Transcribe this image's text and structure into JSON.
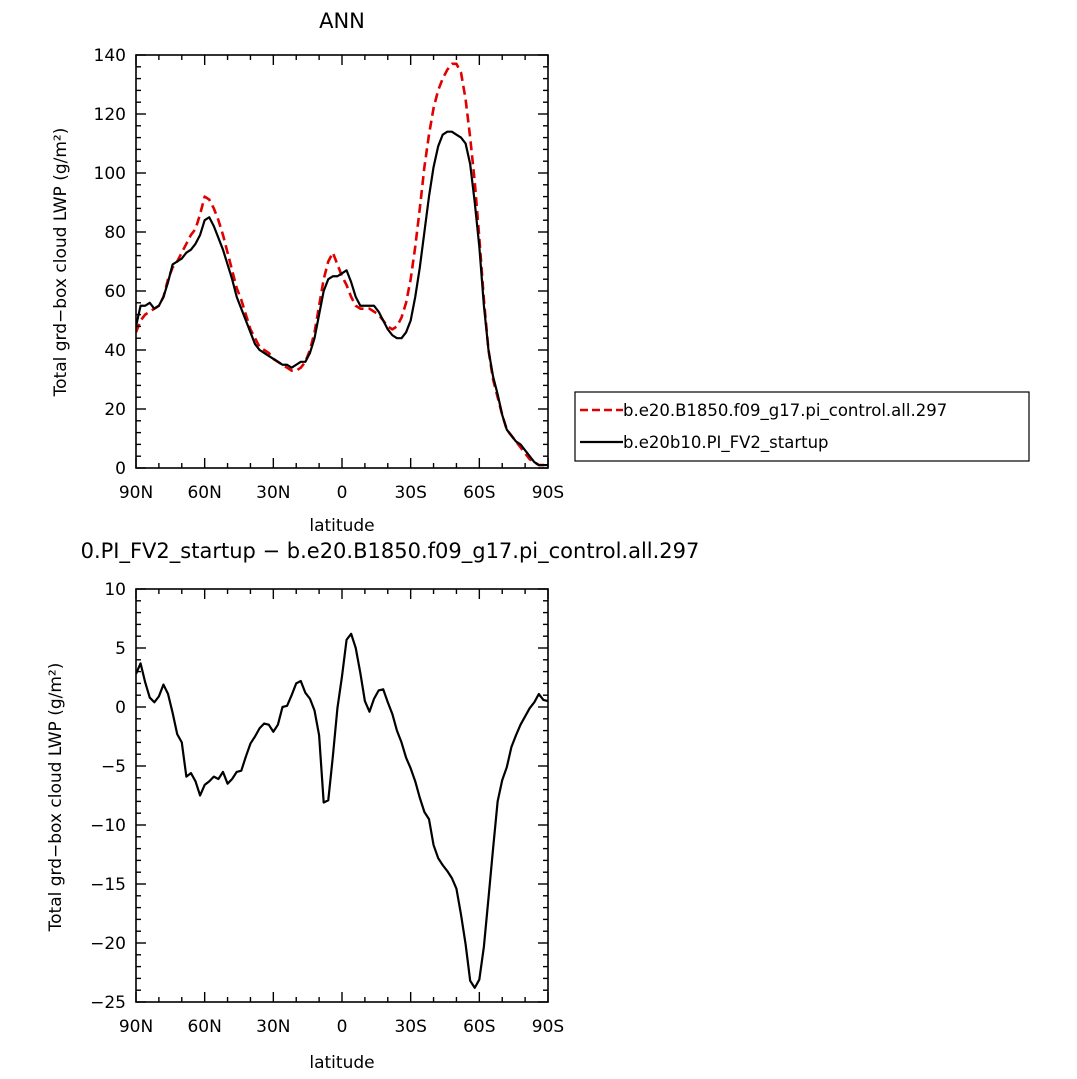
{
  "chart_data": [
    {
      "type": "line",
      "title": "ANN",
      "xlabel": "latitude",
      "ylabel": "Total grd−box cloud LWP (g/m²)",
      "xlim": [
        90,
        -90
      ],
      "ylim": [
        0,
        140
      ],
      "x_tick_values": [
        90,
        60,
        30,
        0,
        -30,
        -60,
        -90
      ],
      "x_tick_labels": [
        "90N",
        "60N",
        "30N",
        "0",
        "30S",
        "60S",
        "90S"
      ],
      "y_tick_values": [
        0,
        20,
        40,
        60,
        80,
        100,
        120,
        140
      ],
      "y_tick_labels": [
        "0",
        "20",
        "40",
        "60",
        "80",
        "100",
        "120",
        "140"
      ],
      "legend_position": "right",
      "series": [
        {
          "name": "b.e20.B1850.f09_g17.pi_control.all.297",
          "color": "#e00000",
          "dash": "dashed",
          "x": [
            90,
            88,
            86,
            84,
            82,
            80,
            78,
            76,
            74,
            72,
            70,
            68,
            66,
            64,
            62,
            60,
            58,
            56,
            54,
            52,
            50,
            48,
            46,
            44,
            42,
            40,
            38,
            36,
            34,
            32,
            30,
            28,
            26,
            24,
            22,
            20,
            18,
            16,
            14,
            12,
            10,
            8,
            6,
            4,
            2,
            0,
            -2,
            -4,
            -6,
            -8,
            -10,
            -12,
            -14,
            -16,
            -18,
            -20,
            -22,
            -24,
            -26,
            -28,
            -30,
            -32,
            -34,
            -36,
            -38,
            -40,
            -42,
            -44,
            -46,
            -48,
            -50,
            -52,
            -54,
            -56,
            -58,
            -60,
            -62,
            -64,
            -66,
            -68,
            -70,
            -72,
            -74,
            -76,
            -78,
            -80,
            -82,
            -84,
            -86,
            -88,
            -90
          ],
          "values": [
            46,
            50,
            52,
            53,
            54,
            55,
            58,
            64,
            68,
            70,
            73,
            76,
            79,
            81,
            86,
            92,
            91,
            88,
            84,
            79,
            73,
            67,
            61,
            57,
            52,
            47,
            44,
            41,
            40,
            39,
            37,
            36,
            35,
            34,
            33,
            33,
            34,
            36,
            40,
            46,
            55,
            64,
            70,
            73,
            69,
            65,
            62,
            58,
            55,
            54,
            54,
            54,
            53,
            52,
            50,
            48,
            47,
            48,
            51,
            56,
            64,
            75,
            88,
            102,
            113,
            122,
            128,
            132,
            135,
            137,
            137,
            134,
            125,
            112,
            97,
            78,
            57,
            40,
            30,
            24,
            18,
            13,
            11,
            9,
            7,
            5,
            3,
            2,
            1,
            1,
            1
          ]
        },
        {
          "name": "b.e20b10.PI_FV2_startup",
          "color": "#000000",
          "dash": "solid",
          "x": [
            90,
            88,
            86,
            84,
            82,
            80,
            78,
            76,
            74,
            72,
            70,
            68,
            66,
            64,
            62,
            60,
            58,
            56,
            54,
            52,
            50,
            48,
            46,
            44,
            42,
            40,
            38,
            36,
            34,
            32,
            30,
            28,
            26,
            24,
            22,
            20,
            18,
            16,
            14,
            12,
            10,
            8,
            6,
            4,
            2,
            0,
            -2,
            -4,
            -6,
            -8,
            -10,
            -12,
            -14,
            -16,
            -18,
            -20,
            -22,
            -24,
            -26,
            -28,
            -30,
            -32,
            -34,
            -36,
            -38,
            -40,
            -42,
            -44,
            -46,
            -48,
            -50,
            -52,
            -54,
            -56,
            -58,
            -60,
            -62,
            -64,
            -66,
            -68,
            -70,
            -72,
            -74,
            -76,
            -78,
            -80,
            -82,
            -84,
            -86,
            -88,
            -90
          ],
          "values": [
            48,
            55,
            55,
            56,
            54,
            55,
            58,
            63,
            69,
            70,
            71,
            73,
            74,
            76,
            79,
            84,
            85,
            82,
            78,
            74,
            69,
            64,
            58,
            54,
            50,
            46,
            42,
            40,
            39,
            38,
            37,
            36,
            35,
            35,
            34,
            35,
            36,
            36,
            39,
            44,
            52,
            60,
            64,
            65,
            65,
            66,
            67,
            63,
            58,
            55,
            55,
            55,
            55,
            53,
            50,
            47,
            45,
            44,
            44,
            46,
            50,
            58,
            68,
            80,
            92,
            102,
            109,
            113,
            114,
            114,
            113,
            112,
            110,
            103,
            90,
            75,
            55,
            40,
            31,
            25,
            18,
            13,
            11,
            9,
            8,
            6,
            4,
            2,
            1,
            1,
            1
          ]
        }
      ]
    },
    {
      "type": "line",
      "title": "0.PI_FV2_startup − b.e20.B1850.f09_g17.pi_control.all.297",
      "xlabel": "latitude",
      "ylabel": "Total grd−box cloud LWP (g/m²)",
      "xlim": [
        90,
        -90
      ],
      "ylim": [
        -25,
        10
      ],
      "x_tick_values": [
        90,
        60,
        30,
        0,
        -30,
        -60,
        -90
      ],
      "x_tick_labels": [
        "90N",
        "60N",
        "30N",
        "0",
        "30S",
        "60S",
        "90S"
      ],
      "y_tick_values": [
        -25,
        -20,
        -15,
        -10,
        -5,
        0,
        5,
        10
      ],
      "y_tick_labels": [
        "−25",
        "−20",
        "−15",
        "−10",
        "−5",
        "0",
        "5",
        "10"
      ],
      "series": [
        {
          "color": "#000000",
          "dash": "solid",
          "x": [
            90,
            88,
            86,
            84,
            82,
            80,
            78,
            76,
            74,
            72,
            70,
            68,
            66,
            64,
            62,
            60,
            58,
            56,
            54,
            52,
            50,
            48,
            46,
            44,
            42,
            40,
            38,
            36,
            34,
            32,
            30,
            28,
            26,
            24,
            22,
            20,
            18,
            16,
            14,
            12,
            10,
            8,
            6,
            4,
            2,
            0,
            -2,
            -4,
            -6,
            -8,
            -10,
            -12,
            -14,
            -16,
            -18,
            -20,
            -22,
            -24,
            -26,
            -28,
            -30,
            -32,
            -34,
            -36,
            -38,
            -40,
            -42,
            -44,
            -46,
            -48,
            -50,
            -52,
            -54,
            -56,
            -58,
            -60,
            -62,
            -64,
            -66,
            -68,
            -70,
            -72,
            -74,
            -76,
            -78,
            -80,
            -82,
            -84,
            -86,
            -88,
            -90
          ],
          "values": [
            2.8,
            3.7,
            2.1,
            0.8,
            0.4,
            0.9,
            1.9,
            1.1,
            -0.5,
            -2.3,
            -3.0,
            -5.9,
            -5.6,
            -6.3,
            -7.5,
            -6.6,
            -6.3,
            -5.9,
            -6.1,
            -5.5,
            -6.5,
            -6.1,
            -5.5,
            -5.4,
            -4.2,
            -3.1,
            -2.5,
            -1.8,
            -1.4,
            -1.5,
            -2.1,
            -1.5,
            0.0,
            0.1,
            1.0,
            2.0,
            2.2,
            1.2,
            0.7,
            -0.3,
            -2.4,
            -8.1,
            -7.9,
            -4.2,
            -0.1,
            2.6,
            5.7,
            6.2,
            5.0,
            2.9,
            0.5,
            -0.4,
            0.7,
            1.4,
            1.5,
            0.4,
            -0.6,
            -2.0,
            -3.0,
            -4.3,
            -5.2,
            -6.3,
            -7.7,
            -8.9,
            -9.5,
            -11.7,
            -12.8,
            -13.4,
            -13.9,
            -14.5,
            -15.4,
            -17.6,
            -20.1,
            -23.2,
            -23.8,
            -23.1,
            -20.3,
            -16.2,
            -12.0,
            -8.0,
            -6.2,
            -5.1,
            -3.4,
            -2.4,
            -1.5,
            -0.8,
            -0.1,
            0.4,
            1.1,
            0.6,
            0.5
          ]
        }
      ]
    }
  ]
}
